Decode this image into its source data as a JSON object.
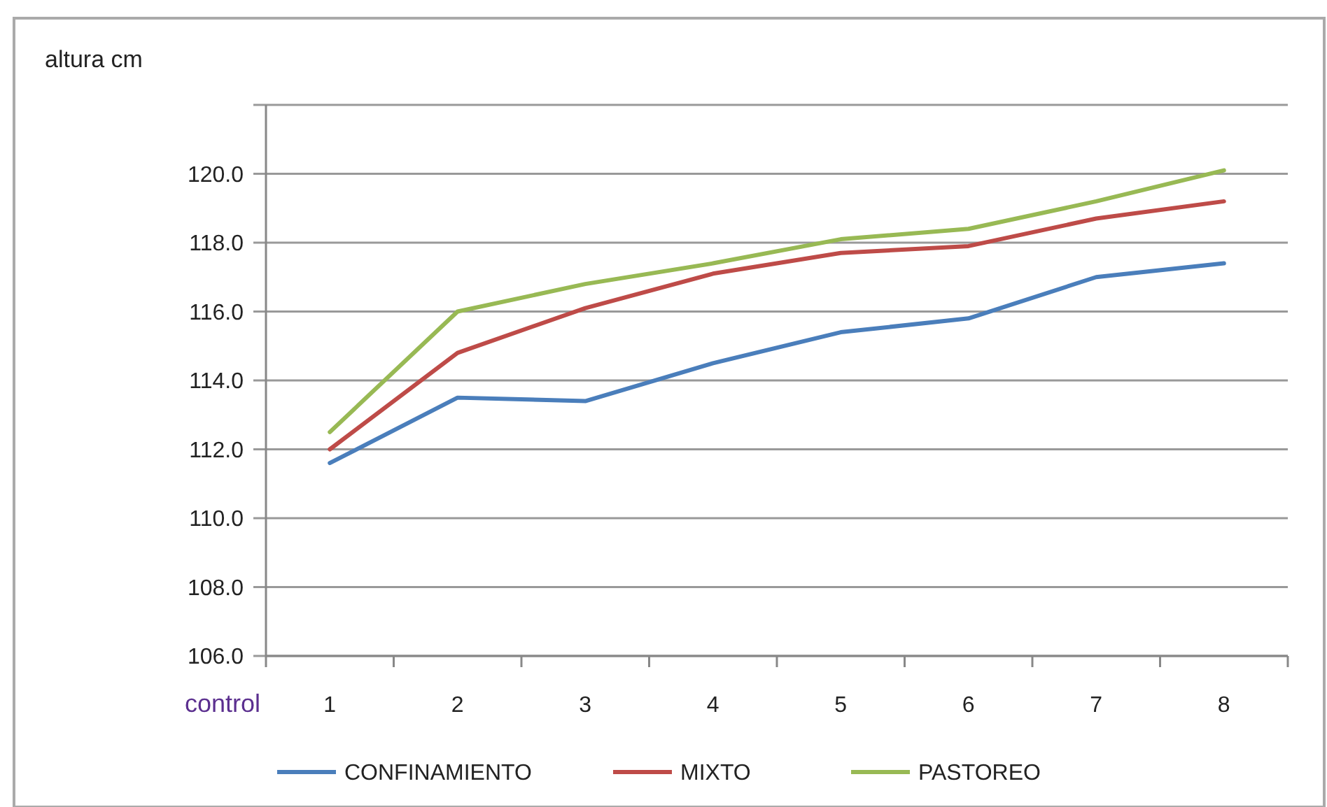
{
  "chart_data": {
    "type": "line",
    "ylabel": "altura cm",
    "xlabel": "control",
    "categories": [
      "1",
      "2",
      "3",
      "4",
      "5",
      "6",
      "7",
      "8"
    ],
    "series": [
      {
        "name": "CONFINAMIENTO",
        "color": "#4a7ebb",
        "values": [
          111.6,
          113.5,
          113.4,
          114.5,
          115.4,
          115.8,
          117.0,
          117.4
        ]
      },
      {
        "name": "MIXTO",
        "color": "#be4b48",
        "values": [
          112.0,
          114.8,
          116.1,
          117.1,
          117.7,
          117.9,
          118.7,
          119.2
        ]
      },
      {
        "name": "PASTOREO",
        "color": "#98b954",
        "values": [
          112.5,
          116.0,
          116.8,
          117.4,
          118.1,
          118.4,
          119.2,
          120.1
        ]
      }
    ],
    "ylim": [
      106,
      122
    ],
    "yticks": [
      {
        "value": 106,
        "label": "106.0"
      },
      {
        "value": 108,
        "label": "108.0"
      },
      {
        "value": 110,
        "label": "110.0"
      },
      {
        "value": 112,
        "label": "112.0"
      },
      {
        "value": 114,
        "label": "114.0"
      },
      {
        "value": 116,
        "label": "116.0"
      },
      {
        "value": 118,
        "label": "118.0"
      },
      {
        "value": 120,
        "label": "120.0"
      },
      {
        "value": 122,
        "label": null
      }
    ],
    "grid": "y",
    "legend": "bottom",
    "marker": "none",
    "line_style": "solid"
  }
}
